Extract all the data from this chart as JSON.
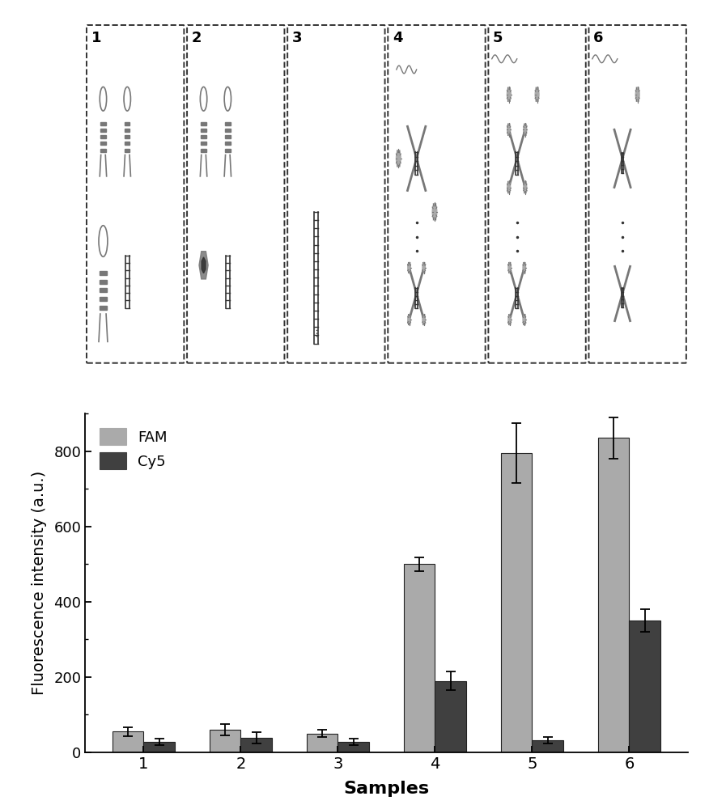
{
  "categories": [
    "1",
    "2",
    "3",
    "4",
    "5",
    "6"
  ],
  "FAM_values": [
    55,
    60,
    50,
    500,
    795,
    835
  ],
  "FAM_errors": [
    12,
    15,
    10,
    18,
    80,
    55
  ],
  "Cy5_values": [
    28,
    38,
    28,
    190,
    32,
    350
  ],
  "Cy5_errors": [
    8,
    15,
    8,
    25,
    8,
    30
  ],
  "FAM_color": "#aaaaaa",
  "Cy5_color": "#404040",
  "bar_edge_color": "#222222",
  "ylabel": "Fluorescence intensity (a.u.)",
  "xlabel": "Samples",
  "ylim": [
    0,
    900
  ],
  "yticks": [
    0,
    200,
    400,
    600,
    800
  ],
  "legend_labels": [
    "FAM",
    "Cy5"
  ],
  "bar_width": 0.32,
  "figure_width": 8.76,
  "figure_height": 10.0,
  "dpi": 100,
  "bg_color": "#ffffff",
  "diagram_bg": "#f0f0f0"
}
